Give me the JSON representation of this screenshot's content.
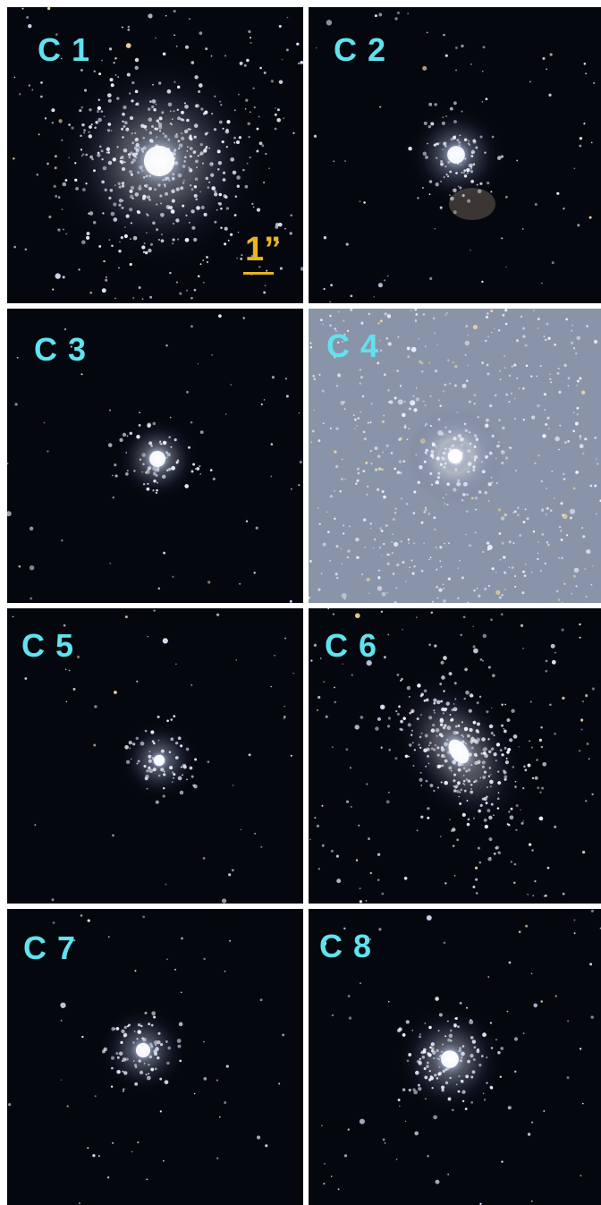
{
  "panels": [
    {
      "label": "C 1",
      "background": "#05070f",
      "cluster_color": "#e8f0ff",
      "style": "bright-dense"
    },
    {
      "label": "C 2",
      "background": "#05070f",
      "cluster_color": "#c9d6f2",
      "style": "double-compact"
    },
    {
      "label": "C 3",
      "background": "#05070f",
      "cluster_color": "#e6eeff",
      "style": "compact"
    },
    {
      "label": "C 4",
      "background": "#8a94a8",
      "cluster_color": "#ffffff",
      "style": "crowded-field"
    },
    {
      "label": "C 5",
      "background": "#05070f",
      "cluster_color": "#c6d3ee",
      "style": "faint"
    },
    {
      "label": "C 6",
      "background": "#05070f",
      "cluster_color": "#eef3ff",
      "style": "elongated"
    },
    {
      "label": "C 7",
      "background": "#05070f",
      "cluster_color": "#c9d6ef",
      "style": "faint-resolved"
    },
    {
      "label": "C 8",
      "background": "#05070f",
      "cluster_color": "#e4ecff",
      "style": "compact-halo"
    }
  ],
  "scale_bar": {
    "text": "1”",
    "color": "#e9b51c"
  },
  "label_color": "#5fe3ef"
}
